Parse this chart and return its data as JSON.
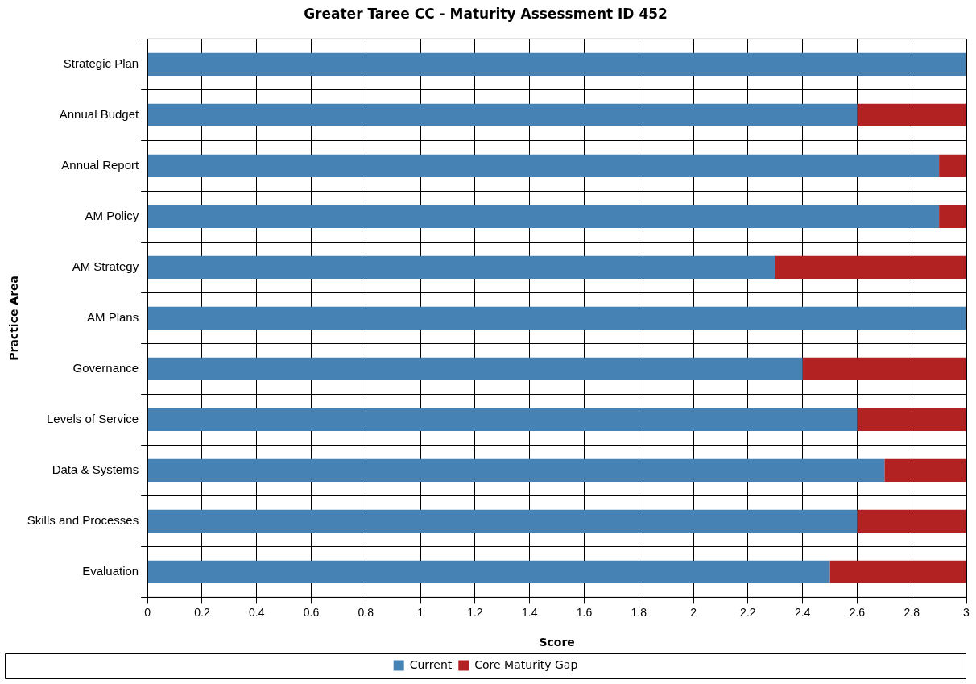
{
  "chart_data": {
    "type": "bar",
    "title": "Greater Taree CC - Maturity Assessment ID 452",
    "xlabel": "Score",
    "ylabel": "Practice Area",
    "orientation": "horizontal",
    "stacked": true,
    "grid": true,
    "legend": "bottom",
    "categories": [
      "Strategic Plan",
      "Annual Budget",
      "Annual Report",
      "AM Policy",
      "AM Strategy",
      "AM Plans",
      "Governance",
      "Levels of Service",
      "Data & Systems",
      "Skills and Processes",
      "Evaluation"
    ],
    "series": [
      {
        "name": "Current",
        "color": "#4682b4",
        "values": [
          3,
          2.6,
          2.9,
          2.9,
          2.3,
          3,
          2.4,
          2.6,
          2.7,
          2.6,
          2.5
        ]
      },
      {
        "name": "Core Maturity Gap",
        "color": "#b22222",
        "values": [
          0,
          0.4,
          0.1,
          0.1,
          0.7,
          0,
          0.6,
          0.4,
          0.3,
          0.4,
          0.5
        ]
      }
    ],
    "xlim": [
      0,
      3
    ],
    "xticks": [
      0,
      0.2,
      0.4,
      0.6,
      0.8,
      1,
      1.2,
      1.4,
      1.6,
      1.8,
      2,
      2.2,
      2.4,
      2.6,
      2.8,
      3
    ]
  }
}
